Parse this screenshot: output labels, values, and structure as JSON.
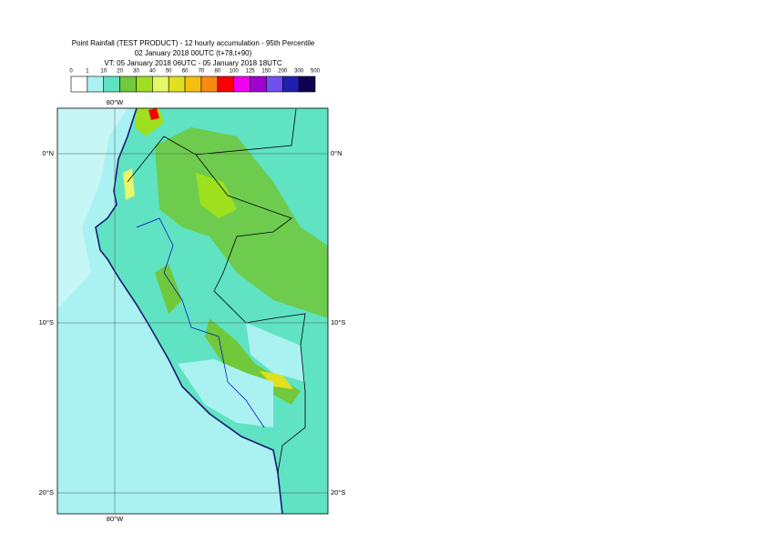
{
  "header": {
    "lines": [
      "Point Rainfall (TEST PRODUCT) - 12 hourly accumulation - 95th Percentile",
      "02 January 2018 00UTC (t+78,t+90)",
      "VT: 05 January 2018 06UTC - 05 January 2018 18UTC"
    ]
  },
  "legend": {
    "levels": [
      0,
      1,
      10,
      20,
      30,
      40,
      50,
      60,
      70,
      80,
      100,
      125,
      150,
      200,
      300,
      500
    ],
    "colors": [
      "#ffffff",
      "#aaf2f2",
      "#5fe3c3",
      "#70c83a",
      "#9ee01e",
      "#e6f86a",
      "#e0e020",
      "#f4c010",
      "#f88a10",
      "#f80000",
      "#f000f0",
      "#a000d0",
      "#7050f0",
      "#2020b0",
      "#100050"
    ]
  },
  "map": {
    "top_labels": [
      "80°W"
    ],
    "bottom_labels": [
      "80°W"
    ],
    "left_labels": [
      "0°N",
      "10°S",
      "20°S"
    ],
    "right_labels": [
      "0°N",
      "10°S",
      "20°S"
    ]
  }
}
